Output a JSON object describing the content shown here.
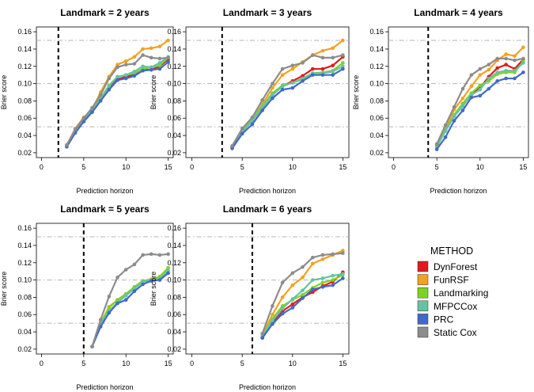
{
  "chart_data": [
    {
      "type": "line",
      "title": "Landmark = 2 years",
      "landmark": 2,
      "xlabel": "Prediction horizon",
      "ylabel": "Brier score",
      "xlim": [
        0,
        15
      ],
      "ylim": [
        0.02,
        0.16
      ],
      "xticks": [
        0,
        5,
        10,
        15
      ],
      "yticks": [
        0.02,
        0.04,
        0.06,
        0.08,
        0.1,
        0.12,
        0.14,
        0.16
      ],
      "ytick_labels": [
        "0.02",
        "0.04",
        "0.06",
        "0.08",
        "0.10",
        "0.12",
        "0.14",
        "0.16"
      ],
      "hlines": [
        0.05,
        0.1,
        0.15
      ],
      "x": [
        3,
        4,
        5,
        6,
        7,
        8,
        9,
        10,
        11,
        12,
        13,
        14,
        15
      ],
      "series": [
        {
          "name": "DynForest",
          "values": [
            0.027,
            0.044,
            0.057,
            0.069,
            0.083,
            0.095,
            0.105,
            0.108,
            0.11,
            0.116,
            0.116,
            0.12,
            0.128
          ]
        },
        {
          "name": "FunRSF",
          "values": [
            0.029,
            0.048,
            0.061,
            0.07,
            0.09,
            0.108,
            0.122,
            0.126,
            0.131,
            0.14,
            0.141,
            0.143,
            0.15
          ]
        },
        {
          "name": "Landmarking",
          "values": [
            0.029,
            0.046,
            0.059,
            0.069,
            0.083,
            0.098,
            0.108,
            0.11,
            0.112,
            0.117,
            0.119,
            0.121,
            0.13
          ]
        },
        {
          "name": "MFPCCox",
          "values": [
            0.028,
            0.045,
            0.058,
            0.068,
            0.082,
            0.097,
            0.108,
            0.11,
            0.114,
            0.12,
            0.119,
            0.124,
            0.131
          ]
        },
        {
          "name": "PRC",
          "values": [
            0.027,
            0.043,
            0.056,
            0.067,
            0.08,
            0.093,
            0.104,
            0.106,
            0.109,
            0.115,
            0.116,
            0.117,
            0.125
          ]
        },
        {
          "name": "Static Cox",
          "values": [
            0.029,
            0.047,
            0.06,
            0.072,
            0.087,
            0.106,
            0.119,
            0.122,
            0.123,
            0.133,
            0.13,
            0.129,
            0.13
          ]
        }
      ]
    },
    {
      "type": "line",
      "title": "Landmark = 3 years",
      "landmark": 3,
      "xlabel": "Prediction horizon",
      "ylabel": "Brier score",
      "xlim": [
        0,
        15
      ],
      "ylim": [
        0.02,
        0.16
      ],
      "xticks": [
        0,
        5,
        10,
        15
      ],
      "yticks": [
        0.02,
        0.04,
        0.06,
        0.08,
        0.1,
        0.12,
        0.14,
        0.16
      ],
      "ytick_labels": [
        "0.02",
        "0.04",
        "0.06",
        "0.08",
        "0.10",
        "0.12",
        "0.14",
        "0.16"
      ],
      "hlines": [
        0.05,
        0.1,
        0.15
      ],
      "x": [
        4,
        5,
        6,
        7,
        8,
        9,
        10,
        11,
        12,
        13,
        14,
        15
      ],
      "series": [
        {
          "name": "DynForest",
          "values": [
            0.027,
            0.045,
            0.057,
            0.073,
            0.087,
            0.097,
            0.103,
            0.109,
            0.117,
            0.117,
            0.121,
            0.131
          ]
        },
        {
          "name": "FunRSF",
          "values": [
            0.026,
            0.046,
            0.059,
            0.076,
            0.095,
            0.11,
            0.117,
            0.125,
            0.133,
            0.138,
            0.141,
            0.15
          ]
        },
        {
          "name": "Landmarking",
          "values": [
            0.027,
            0.045,
            0.058,
            0.074,
            0.089,
            0.098,
            0.101,
            0.105,
            0.112,
            0.113,
            0.115,
            0.124
          ]
        },
        {
          "name": "MFPCCox",
          "values": [
            0.026,
            0.044,
            0.057,
            0.072,
            0.087,
            0.097,
            0.101,
            0.106,
            0.112,
            0.112,
            0.114,
            0.12
          ]
        },
        {
          "name": "PRC",
          "values": [
            0.025,
            0.042,
            0.053,
            0.069,
            0.083,
            0.093,
            0.095,
            0.103,
            0.11,
            0.11,
            0.11,
            0.117
          ]
        },
        {
          "name": "Static Cox",
          "values": [
            0.028,
            0.048,
            0.061,
            0.081,
            0.1,
            0.117,
            0.121,
            0.124,
            0.133,
            0.13,
            0.13,
            0.133
          ]
        }
      ]
    },
    {
      "type": "line",
      "title": "Landmark = 4 years",
      "landmark": 4,
      "xlabel": "Prediction horizon",
      "ylabel": "Brier score",
      "xlim": [
        0,
        15
      ],
      "ylim": [
        0.02,
        0.16
      ],
      "xticks": [
        0,
        5,
        10,
        15
      ],
      "yticks": [
        0.02,
        0.04,
        0.06,
        0.08,
        0.1,
        0.12,
        0.14,
        0.16
      ],
      "ytick_labels": [
        "0.02",
        "0.04",
        "0.06",
        "0.08",
        "0.10",
        "0.12",
        "0.14",
        "0.16"
      ],
      "hlines": [
        0.05,
        0.1,
        0.15
      ],
      "x": [
        5,
        6,
        7,
        8,
        9,
        10,
        11,
        12,
        13,
        14,
        15
      ],
      "series": [
        {
          "name": "DynForest",
          "values": [
            0.03,
            0.047,
            0.063,
            0.077,
            0.087,
            0.095,
            0.108,
            0.118,
            0.122,
            0.117,
            0.128
          ]
        },
        {
          "name": "FunRSF",
          "values": [
            0.026,
            0.048,
            0.07,
            0.083,
            0.097,
            0.11,
            0.116,
            0.127,
            0.134,
            0.132,
            0.142
          ]
        },
        {
          "name": "Landmarking",
          "values": [
            0.028,
            0.046,
            0.064,
            0.077,
            0.089,
            0.098,
            0.103,
            0.111,
            0.113,
            0.113,
            0.126
          ]
        },
        {
          "name": "MFPCCox",
          "values": [
            0.027,
            0.045,
            0.062,
            0.074,
            0.087,
            0.093,
            0.106,
            0.113,
            0.115,
            0.115,
            0.124
          ]
        },
        {
          "name": "PRC",
          "values": [
            0.024,
            0.038,
            0.057,
            0.069,
            0.084,
            0.086,
            0.094,
            0.103,
            0.106,
            0.106,
            0.113
          ]
        },
        {
          "name": "Static Cox",
          "values": [
            0.03,
            0.052,
            0.073,
            0.094,
            0.11,
            0.117,
            0.122,
            0.129,
            0.129,
            0.127,
            0.129
          ]
        }
      ]
    },
    {
      "type": "line",
      "title": "Landmark = 5 years",
      "landmark": 5,
      "xlabel": "Prediction horizon",
      "ylabel": "Brier score",
      "xlim": [
        0,
        15
      ],
      "ylim": [
        0.02,
        0.16
      ],
      "xticks": [
        0,
        5,
        10,
        15
      ],
      "yticks": [
        0.02,
        0.04,
        0.06,
        0.08,
        0.1,
        0.12,
        0.14,
        0.16
      ],
      "ytick_labels": [
        "0.02",
        "0.04",
        "0.06",
        "0.08",
        "0.10",
        "0.12",
        "0.14",
        "0.16"
      ],
      "hlines": [
        0.05,
        0.1,
        0.15
      ],
      "x": [
        6,
        7,
        8,
        9,
        10,
        11,
        12,
        13,
        14,
        15
      ],
      "series": [
        {
          "name": "FunRSF",
          "values": [
            0.023,
            0.05,
            0.069,
            0.077,
            0.083,
            0.092,
            0.099,
            0.101,
            0.104,
            0.114
          ]
        },
        {
          "name": "Landmarking",
          "values": [
            0.023,
            0.05,
            0.068,
            0.077,
            0.084,
            0.092,
            0.099,
            0.1,
            0.104,
            0.114
          ]
        },
        {
          "name": "MFPCCox",
          "values": [
            0.023,
            0.048,
            0.064,
            0.074,
            0.082,
            0.09,
            0.098,
            0.1,
            0.101,
            0.111
          ]
        },
        {
          "name": "PRC",
          "values": [
            0.023,
            0.046,
            0.062,
            0.073,
            0.077,
            0.087,
            0.095,
            0.099,
            0.1,
            0.108
          ]
        },
        {
          "name": "Static Cox",
          "values": [
            0.023,
            0.054,
            0.081,
            0.103,
            0.112,
            0.118,
            0.129,
            0.13,
            0.129,
            0.13
          ]
        }
      ]
    },
    {
      "type": "line",
      "title": "Landmark = 6 years",
      "landmark": 6,
      "xlabel": "Prediction horizon",
      "ylabel": "Brier score",
      "xlim": [
        0,
        15
      ],
      "ylim": [
        0.02,
        0.16
      ],
      "xticks": [
        0,
        5,
        10,
        15
      ],
      "yticks": [
        0.02,
        0.04,
        0.06,
        0.08,
        0.1,
        0.12,
        0.14,
        0.16
      ],
      "ytick_labels": [
        "0.02",
        "0.04",
        "0.06",
        "0.08",
        "0.10",
        "0.12",
        "0.14",
        "0.16"
      ],
      "hlines": [
        0.05,
        0.1,
        0.15
      ],
      "x": [
        7,
        8,
        9,
        10,
        11,
        12,
        13,
        14,
        15
      ],
      "series": [
        {
          "name": "DynForest",
          "values": [
            0.033,
            0.05,
            0.064,
            0.072,
            0.08,
            0.086,
            0.093,
            0.098,
            0.109
          ]
        },
        {
          "name": "FunRSF",
          "values": [
            0.036,
            0.06,
            0.08,
            0.094,
            0.103,
            0.119,
            0.124,
            0.129,
            0.134
          ]
        },
        {
          "name": "Landmarking",
          "values": [
            0.034,
            0.055,
            0.07,
            0.077,
            0.083,
            0.091,
            0.097,
            0.1,
            0.106
          ]
        },
        {
          "name": "MFPCCox",
          "values": [
            0.034,
            0.053,
            0.067,
            0.078,
            0.088,
            0.1,
            0.102,
            0.105,
            0.107
          ]
        },
        {
          "name": "PRC",
          "values": [
            0.033,
            0.049,
            0.061,
            0.068,
            0.079,
            0.089,
            0.092,
            0.094,
            0.102
          ]
        },
        {
          "name": "Static Cox",
          "values": [
            0.038,
            0.07,
            0.097,
            0.108,
            0.115,
            0.126,
            0.129,
            0.13,
            0.131
          ]
        }
      ]
    }
  ],
  "legend": {
    "title": "METHOD",
    "items": [
      {
        "name": "DynForest",
        "color": "#e31a1c"
      },
      {
        "name": "FunRSF",
        "color": "#f5a11d"
      },
      {
        "name": "Landmarking",
        "color": "#7ed321"
      },
      {
        "name": "MFPCCox",
        "color": "#66c2a5"
      },
      {
        "name": "PRC",
        "color": "#4169c9"
      },
      {
        "name": "Static Cox",
        "color": "#8c8c8c"
      }
    ]
  }
}
